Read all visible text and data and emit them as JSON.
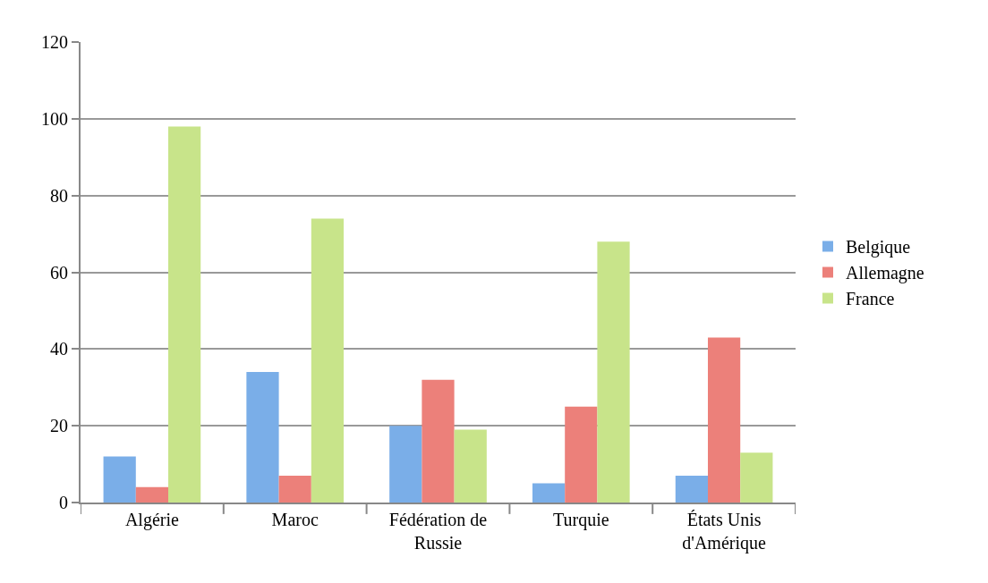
{
  "chart_data": {
    "type": "bar",
    "categories": [
      "Algérie",
      "Maroc",
      "Fédération de Russie",
      "Turquie",
      "États Unis d'Amérique"
    ],
    "series": [
      {
        "name": "Belgique",
        "color": "#7aaee8",
        "values": [
          12,
          34,
          20,
          5,
          7
        ]
      },
      {
        "name": "Allemagne",
        "color": "#ec807a",
        "values": [
          4,
          7,
          32,
          25,
          43
        ]
      },
      {
        "name": "France",
        "color": "#c8e48a",
        "values": [
          98,
          74,
          19,
          68,
          13
        ]
      }
    ],
    "ylim": [
      0,
      120
    ],
    "yticks": [
      0,
      20,
      40,
      60,
      80,
      100,
      120
    ],
    "grid": "y",
    "legend": "right"
  }
}
